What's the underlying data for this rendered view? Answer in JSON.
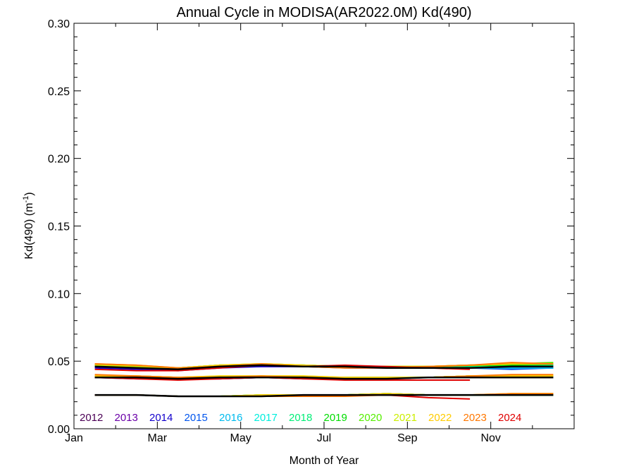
{
  "chart_data": {
    "type": "line",
    "title": "Annual Cycle in MODISA(AR2022.0M) Kd(490)",
    "xlabel": "Month of Year",
    "ylabel": "Kd(490) (m",
    "ylabel_sup": "-1",
    "ylabel_close": ")",
    "xlim": [
      1,
      13
    ],
    "ylim": [
      0.0,
      0.3
    ],
    "x_tick_labels": [
      {
        "x": 1,
        "label": "Jan"
      },
      {
        "x": 3,
        "label": "Mar"
      },
      {
        "x": 5,
        "label": "May"
      },
      {
        "x": 7,
        "label": "Jul"
      },
      {
        "x": 9,
        "label": "Sep"
      },
      {
        "x": 11,
        "label": "Nov"
      }
    ],
    "y_ticks": [
      0.0,
      0.05,
      0.1,
      0.15,
      0.2,
      0.25,
      0.3
    ],
    "y_tick_labels": [
      "0.00",
      "0.05",
      "0.10",
      "0.15",
      "0.20",
      "0.25",
      "0.30"
    ],
    "x_months": [
      1.5,
      2.5,
      3.5,
      4.5,
      5.5,
      6.5,
      7.5,
      8.5,
      9.5,
      10.5,
      11.5,
      12.5
    ],
    "legend_position": "bottom",
    "series": [
      {
        "name": "2012",
        "color": "#4b0055",
        "groups": [
          [
            0.047,
            0.046,
            0.044,
            0.046,
            0.047,
            0.046,
            0.046,
            0.045,
            0.045,
            0.046,
            0.046,
            0.047
          ],
          [
            0.039,
            0.038,
            0.037,
            0.038,
            0.038,
            0.038,
            0.037,
            0.038,
            0.038,
            0.039,
            0.039,
            0.039
          ],
          [
            0.025,
            0.025,
            0.024,
            0.024,
            0.024,
            0.025,
            0.025,
            0.026,
            0.025,
            0.025,
            0.025,
            0.025
          ]
        ]
      },
      {
        "name": "2013",
        "color": "#6a00a8",
        "groups": [
          [
            0.046,
            0.045,
            0.044,
            0.046,
            0.046,
            0.046,
            0.046,
            0.045,
            0.045,
            0.045,
            0.045,
            0.046
          ],
          [
            0.038,
            0.038,
            0.037,
            0.037,
            0.038,
            0.038,
            0.037,
            0.038,
            0.038,
            0.038,
            0.038,
            0.038
          ],
          [
            0.025,
            0.025,
            0.024,
            0.024,
            0.024,
            0.025,
            0.025,
            0.025,
            0.025,
            0.025,
            0.025,
            0.025
          ]
        ]
      },
      {
        "name": "2014",
        "color": "#1200cc",
        "groups": [
          [
            0.045,
            0.044,
            0.043,
            0.045,
            0.046,
            0.046,
            0.045,
            0.045,
            0.045,
            0.045,
            0.045,
            0.045
          ],
          [
            0.038,
            0.037,
            0.037,
            0.037,
            0.038,
            0.037,
            0.037,
            0.037,
            0.038,
            0.038,
            0.038,
            0.038
          ],
          [
            0.025,
            0.025,
            0.024,
            0.024,
            0.024,
            0.025,
            0.025,
            0.025,
            0.025,
            0.025,
            0.025,
            0.025
          ]
        ]
      },
      {
        "name": "2015",
        "color": "#0055ee",
        "groups": [
          [
            0.046,
            0.045,
            0.044,
            0.046,
            0.047,
            0.046,
            0.046,
            0.045,
            0.045,
            0.045,
            0.044,
            0.045
          ],
          [
            0.038,
            0.038,
            0.037,
            0.038,
            0.038,
            0.038,
            0.037,
            0.037,
            0.038,
            0.038,
            0.038,
            0.038
          ],
          [
            0.025,
            0.025,
            0.024,
            0.024,
            0.024,
            0.025,
            0.025,
            0.025,
            0.025,
            0.025,
            0.025,
            0.025
          ]
        ]
      },
      {
        "name": "2016",
        "color": "#00bbee",
        "groups": [
          [
            0.046,
            0.045,
            0.044,
            0.046,
            0.047,
            0.046,
            0.046,
            0.045,
            0.045,
            0.045,
            0.045,
            0.045
          ],
          [
            0.038,
            0.038,
            0.037,
            0.038,
            0.038,
            0.038,
            0.037,
            0.037,
            0.038,
            0.038,
            0.038,
            0.038
          ],
          [
            0.025,
            0.025,
            0.024,
            0.024,
            0.024,
            0.025,
            0.025,
            0.025,
            0.025,
            0.025,
            0.025,
            0.025
          ]
        ]
      },
      {
        "name": "2017",
        "color": "#00eedd",
        "groups": [
          [
            0.047,
            0.046,
            0.045,
            0.046,
            0.047,
            0.047,
            0.046,
            0.046,
            0.046,
            0.046,
            0.046,
            0.046
          ],
          [
            0.039,
            0.038,
            0.037,
            0.038,
            0.039,
            0.038,
            0.038,
            0.038,
            0.038,
            0.039,
            0.039,
            0.039
          ],
          [
            0.025,
            0.025,
            0.024,
            0.024,
            0.025,
            0.025,
            0.025,
            0.026,
            0.025,
            0.025,
            0.025,
            0.025
          ]
        ]
      },
      {
        "name": "2018",
        "color": "#00ee77",
        "groups": [
          [
            0.047,
            0.046,
            0.045,
            0.047,
            0.047,
            0.047,
            0.046,
            0.046,
            0.046,
            0.046,
            0.047,
            0.047
          ],
          [
            0.039,
            0.038,
            0.038,
            0.038,
            0.039,
            0.038,
            0.038,
            0.038,
            0.038,
            0.039,
            0.039,
            0.039
          ],
          [
            0.025,
            0.025,
            0.024,
            0.024,
            0.025,
            0.025,
            0.025,
            0.026,
            0.025,
            0.025,
            0.025,
            0.025
          ]
        ]
      },
      {
        "name": "2019",
        "color": "#00dd00",
        "groups": [
          [
            0.047,
            0.046,
            0.045,
            0.047,
            0.048,
            0.047,
            0.046,
            0.046,
            0.046,
            0.047,
            0.047,
            0.048
          ],
          [
            0.039,
            0.039,
            0.038,
            0.038,
            0.039,
            0.038,
            0.038,
            0.038,
            0.038,
            0.039,
            0.039,
            0.039
          ],
          [
            0.025,
            0.025,
            0.024,
            0.024,
            0.025,
            0.025,
            0.025,
            0.026,
            0.025,
            0.025,
            0.025,
            0.025
          ]
        ]
      },
      {
        "name": "2020",
        "color": "#55ee00",
        "groups": [
          [
            0.047,
            0.046,
            0.045,
            0.047,
            0.047,
            0.047,
            0.046,
            0.046,
            0.046,
            0.047,
            0.048,
            0.049
          ],
          [
            0.039,
            0.039,
            0.038,
            0.038,
            0.039,
            0.038,
            0.038,
            0.038,
            0.038,
            0.039,
            0.039,
            0.039
          ],
          [
            0.025,
            0.025,
            0.024,
            0.024,
            0.025,
            0.025,
            0.025,
            0.026,
            0.025,
            0.025,
            0.025,
            0.025
          ]
        ]
      },
      {
        "name": "2021",
        "color": "#ccee00",
        "groups": [
          [
            0.047,
            0.046,
            0.045,
            0.047,
            0.048,
            0.047,
            0.046,
            0.046,
            0.046,
            0.047,
            0.048,
            0.048
          ],
          [
            0.039,
            0.039,
            0.038,
            0.039,
            0.039,
            0.039,
            0.038,
            0.038,
            0.038,
            0.039,
            0.039,
            0.039
          ],
          [
            0.025,
            0.025,
            0.024,
            0.024,
            0.025,
            0.025,
            0.025,
            0.026,
            0.025,
            0.025,
            0.026,
            0.026
          ]
        ]
      },
      {
        "name": "2022",
        "color": "#ffcc00",
        "groups": [
          [
            0.048,
            0.047,
            0.045,
            0.047,
            0.048,
            0.047,
            0.046,
            0.046,
            0.046,
            0.047,
            0.048,
            0.048
          ],
          [
            0.039,
            0.039,
            0.038,
            0.039,
            0.039,
            0.039,
            0.038,
            0.038,
            0.038,
            0.039,
            0.039,
            0.039
          ],
          [
            0.025,
            0.025,
            0.024,
            0.024,
            0.025,
            0.025,
            0.025,
            0.026,
            0.025,
            0.025,
            0.026,
            0.026
          ]
        ]
      },
      {
        "name": "2023",
        "color": "#ff7700",
        "groups": [
          [
            0.048,
            0.047,
            0.045,
            0.046,
            0.048,
            0.046,
            0.045,
            0.045,
            0.046,
            0.047,
            0.049,
            0.048
          ],
          [
            0.04,
            0.039,
            0.038,
            0.038,
            0.039,
            0.038,
            0.037,
            0.037,
            0.038,
            0.039,
            0.04,
            0.04
          ],
          [
            0.025,
            0.025,
            0.024,
            0.024,
            0.024,
            0.024,
            0.024,
            0.025,
            0.025,
            0.025,
            0.026,
            0.026
          ]
        ]
      },
      {
        "name": "2024",
        "color": "#e00000",
        "groups": [
          [
            0.044,
            0.043,
            0.043,
            0.045,
            0.047,
            0.046,
            0.047,
            0.046,
            0.045,
            0.044
          ],
          [
            0.038,
            0.037,
            0.036,
            0.037,
            0.038,
            0.037,
            0.036,
            0.036,
            0.036,
            0.036
          ],
          [
            0.025,
            0.025,
            0.024,
            0.024,
            0.024,
            0.025,
            0.025,
            0.025,
            0.023,
            0.022
          ]
        ]
      }
    ],
    "climatology": {
      "color": "#000000",
      "groups": [
        [
          0.046,
          0.045,
          0.044,
          0.046,
          0.047,
          0.046,
          0.046,
          0.045,
          0.045,
          0.045,
          0.046,
          0.046
        ],
        [
          0.038,
          0.038,
          0.037,
          0.038,
          0.038,
          0.038,
          0.037,
          0.037,
          0.038,
          0.038,
          0.038,
          0.038
        ],
        [
          0.025,
          0.025,
          0.024,
          0.024,
          0.024,
          0.025,
          0.025,
          0.025,
          0.025,
          0.025,
          0.025,
          0.025
        ]
      ]
    }
  }
}
